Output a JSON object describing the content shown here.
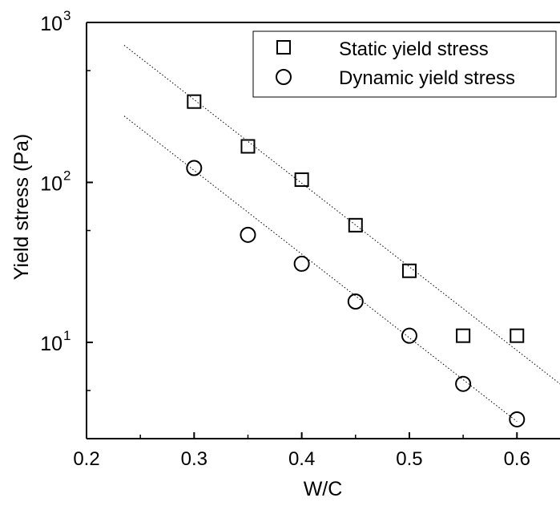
{
  "chart_data": {
    "type": "scatter",
    "xlabel": "W/C",
    "ylabel": "Yield stress (Pa)",
    "xlim": [
      0.2,
      0.64
    ],
    "ylim": [
      2.5,
      1000
    ],
    "yscale": "log",
    "grid": false,
    "legend_position": "top-right",
    "x_ticks": [
      {
        "value": 0.2,
        "label": "0.2"
      },
      {
        "value": 0.3,
        "label": "0.3"
      },
      {
        "value": 0.4,
        "label": "0.4"
      },
      {
        "value": 0.5,
        "label": "0.5"
      },
      {
        "value": 0.6,
        "label": "0.6"
      }
    ],
    "y_ticks": [
      {
        "value": 10,
        "base": "10",
        "exp": "1"
      },
      {
        "value": 100,
        "base": "10",
        "exp": "2"
      },
      {
        "value": 1000,
        "base": "10",
        "exp": "3"
      }
    ],
    "series": [
      {
        "name": "Static yield stress",
        "marker": "square",
        "x": [
          0.3,
          0.35,
          0.4,
          0.45,
          0.5,
          0.55,
          0.6
        ],
        "y": [
          320,
          168,
          104,
          54,
          28,
          11,
          11
        ],
        "fit": {
          "x": [
            0.235,
            0.64
          ],
          "y": [
            720,
            5.5
          ]
        }
      },
      {
        "name": "Dynamic yield stress",
        "marker": "circle",
        "x": [
          0.3,
          0.35,
          0.4,
          0.45,
          0.5,
          0.55,
          0.6
        ],
        "y": [
          123,
          47,
          31,
          18,
          11,
          5.5,
          3.3
        ]
      }
    ],
    "fits": [
      {
        "x": [
          0.235,
          0.64
        ],
        "y": [
          720,
          5.5
        ]
      },
      {
        "x": [
          0.235,
          0.6
        ],
        "y": [
          260,
          3.2
        ]
      }
    ]
  }
}
